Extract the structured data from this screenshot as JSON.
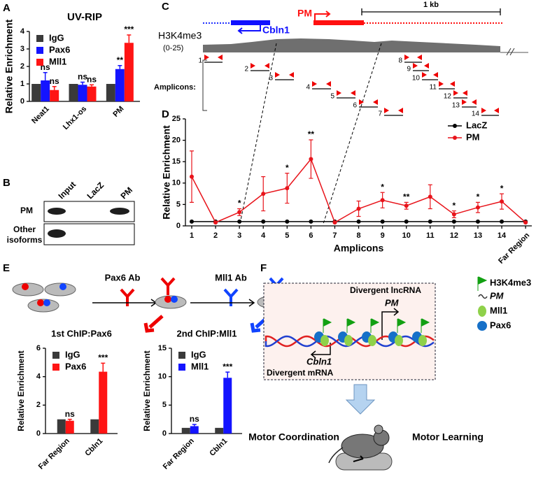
{
  "panels": [
    "A",
    "B",
    "C",
    "D",
    "E",
    "F"
  ],
  "chart_data": [
    {
      "type": "bar",
      "title": "UV-RIP",
      "ylabel": "Relative Enrichment",
      "categories": [
        "Neat1",
        "Lhx1-os",
        "PM"
      ],
      "series": [
        {
          "name": "IgG",
          "color": "#3a3a3a",
          "values": [
            1,
            1,
            1
          ]
        },
        {
          "name": "Pax6",
          "color": "#1414ff",
          "values": [
            1.2,
            0.95,
            1.85
          ],
          "errors": [
            0.45,
            0.15,
            0.2
          ],
          "annotations": [
            "ns",
            "ns",
            "**"
          ]
        },
        {
          "name": "Mll1",
          "color": "#ff1414",
          "values": [
            0.65,
            0.85,
            3.35
          ],
          "errors": [
            0.2,
            0.1,
            0.45
          ],
          "annotations": [
            "ns",
            "ns",
            "***"
          ]
        }
      ],
      "ylim": [
        0,
        4
      ],
      "yticks": [
        0,
        1,
        2,
        3,
        4
      ],
      "legend": "upper left"
    },
    {
      "type": "line",
      "xlabel": "Amplicons",
      "ylabel": "Relative Enrichment",
      "categories": [
        "1",
        "2",
        "3",
        "4",
        "5",
        "6",
        "7",
        "8",
        "9",
        "10",
        "11",
        "12",
        "13",
        "14",
        "Far Region"
      ],
      "series": [
        {
          "name": "LacZ",
          "color": "#000000",
          "values": [
            1,
            1,
            1,
            1,
            1,
            1,
            1,
            1,
            1,
            1,
            1,
            1,
            1,
            1,
            1
          ]
        },
        {
          "name": "PM",
          "color": "#e8141b",
          "values": [
            11.5,
            0.8,
            3.2,
            7.5,
            8.8,
            15.6,
            0.8,
            4,
            6,
            4.7,
            6.8,
            2.7,
            4.3,
            5.7,
            0.8
          ],
          "errors": [
            6,
            0,
            0.8,
            4,
            3.5,
            4.5,
            0,
            1.8,
            1.8,
            0.8,
            2.8,
            0.8,
            1.2,
            1.8,
            0
          ],
          "annotations": [
            null,
            null,
            "*",
            null,
            "*",
            "**",
            null,
            null,
            "*",
            "**",
            null,
            "*",
            "*",
            "*",
            null
          ]
        }
      ],
      "ylim": [
        0,
        25
      ],
      "yticks": [
        0,
        5,
        10,
        15,
        20,
        25
      ],
      "legend": "upper right"
    },
    {
      "type": "bar",
      "title": "1st ChIP:Pax6",
      "ylabel": "Relative Enrichment",
      "categories": [
        "Far Region",
        "Cbln1"
      ],
      "series": [
        {
          "name": "IgG",
          "color": "#3a3a3a",
          "values": [
            1,
            1
          ]
        },
        {
          "name": "Pax6",
          "color": "#ff1414",
          "values": [
            0.9,
            4.35
          ],
          "errors": [
            0.1,
            0.6
          ],
          "annotations": [
            "ns",
            "***"
          ]
        }
      ],
      "ylim": [
        0,
        6
      ],
      "yticks": [
        0,
        2,
        4,
        6
      ],
      "legend": "upper left"
    },
    {
      "type": "bar",
      "title": "2nd ChIP:Mll1",
      "ylabel": "Relative Enrichment",
      "categories": [
        "Far Region",
        "Cbln1"
      ],
      "series": [
        {
          "name": "IgG",
          "color": "#3a3a3a",
          "values": [
            1,
            1
          ]
        },
        {
          "name": "Mll1",
          "color": "#1414ff",
          "values": [
            1.3,
            9.8
          ],
          "errors": [
            0.3,
            1.0
          ],
          "annotations": [
            "ns",
            "***"
          ]
        }
      ],
      "ylim": [
        0,
        15
      ],
      "yticks": [
        0,
        5,
        10,
        15
      ],
      "legend": "upper left"
    }
  ],
  "gel": {
    "columns": [
      "Input",
      "LacZ",
      "PM"
    ],
    "rows": [
      [
        "PM"
      ],
      [
        "Other",
        "isoforms"
      ]
    ]
  },
  "gene_map": {
    "genes": [
      "Cbln1",
      "PM"
    ],
    "scale": "1 kb",
    "track": "H3K4me3",
    "track_range": "(0-25)",
    "amplicons_label": "Amplicons:",
    "amplicons": [
      "1",
      "2",
      "3",
      "4",
      "5",
      "6",
      "7",
      "8",
      "9",
      "10",
      "11",
      "12",
      "13",
      "14"
    ]
  },
  "chip_scheme": {
    "antibodies": [
      "Pax6 Ab",
      "Mll1 Ab"
    ]
  },
  "model": {
    "lncrna": "Divergent lncRNA",
    "lncrna_gene": "PM",
    "mrna_gene": "Cbln1",
    "mrna": "Divergent mRNA",
    "legend": [
      "H3K4me3",
      "PM",
      "Mll1",
      "Pax6"
    ],
    "outcomes": [
      "Motor Coordination",
      "Motor Learning"
    ]
  }
}
